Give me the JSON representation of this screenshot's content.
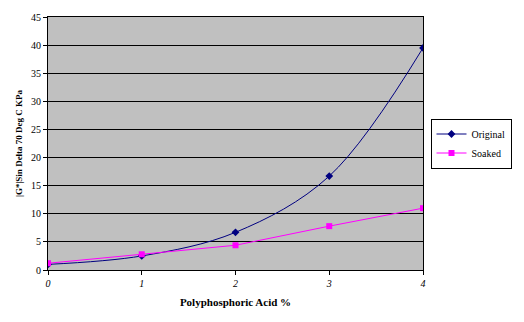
{
  "chart_data": {
    "type": "line",
    "x_label": "Polyphosphoric Acid %",
    "y_label": "|G*|Sin Delta 70 Deg C KPa",
    "x": [
      0,
      1,
      2,
      3,
      4
    ],
    "series": [
      {
        "name": "Original",
        "color": "#000080",
        "marker": "diamond",
        "line_style": "smooth",
        "values": [
          1.0,
          2.5,
          6.7,
          16.7,
          39.5
        ]
      },
      {
        "name": "Soaked",
        "color": "#ff00ff",
        "marker": "square",
        "line_style": "solid",
        "values": [
          1.2,
          2.8,
          4.4,
          7.8,
          11.0
        ]
      }
    ],
    "xlim": [
      0,
      4
    ],
    "xticks": [
      0,
      1,
      2,
      3,
      4
    ],
    "ylim": [
      0,
      45
    ],
    "yticks": [
      0,
      5,
      10,
      15,
      20,
      25,
      30,
      35,
      40,
      45
    ],
    "grid": true,
    "legend": "right"
  }
}
